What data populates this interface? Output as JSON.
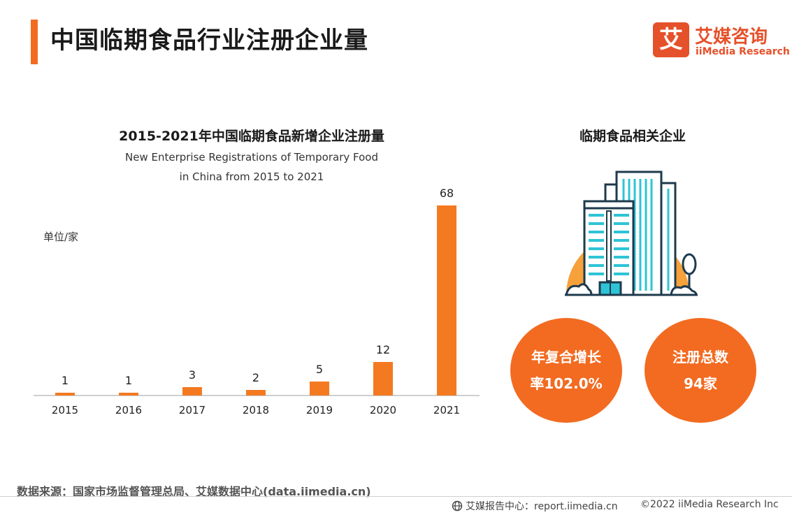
{
  "header": {
    "title": "中国临期食品行业注册企业量",
    "logo_glyph": "艾",
    "logo_cn": "艾媒咨询",
    "logo_en": "iiMedia Research"
  },
  "chart_data": {
    "type": "bar",
    "title": "2015-2021年中国临期食品新增企业注册量",
    "subtitle_line1": "New Enterprise Registrations of Temporary Food",
    "subtitle_line2": "in China from 2015 to 2021",
    "unit": "单位/家",
    "categories": [
      "2015",
      "2016",
      "2017",
      "2018",
      "2019",
      "2020",
      "2021"
    ],
    "values": [
      1,
      1,
      3,
      2,
      5,
      12,
      68
    ],
    "ylim": [
      0,
      68
    ],
    "grid": false,
    "bar_color": "#f47a21"
  },
  "right_panel": {
    "title": "临期食品相关企业",
    "icon": "building-icon",
    "stat1_line1": "年复合增长",
    "stat1_line2": "率102.0%",
    "stat2_line1": "注册总数",
    "stat2_line2": "94家",
    "circle_color": "#f26b21"
  },
  "footer": {
    "source": "数据来源：国家市场监督管理总局、艾媒数据中心(data.iimedia.cn)",
    "report_center": "艾媒报告中心：report.iimedia.cn",
    "copyright": "©2022  iiMedia Research  Inc"
  }
}
